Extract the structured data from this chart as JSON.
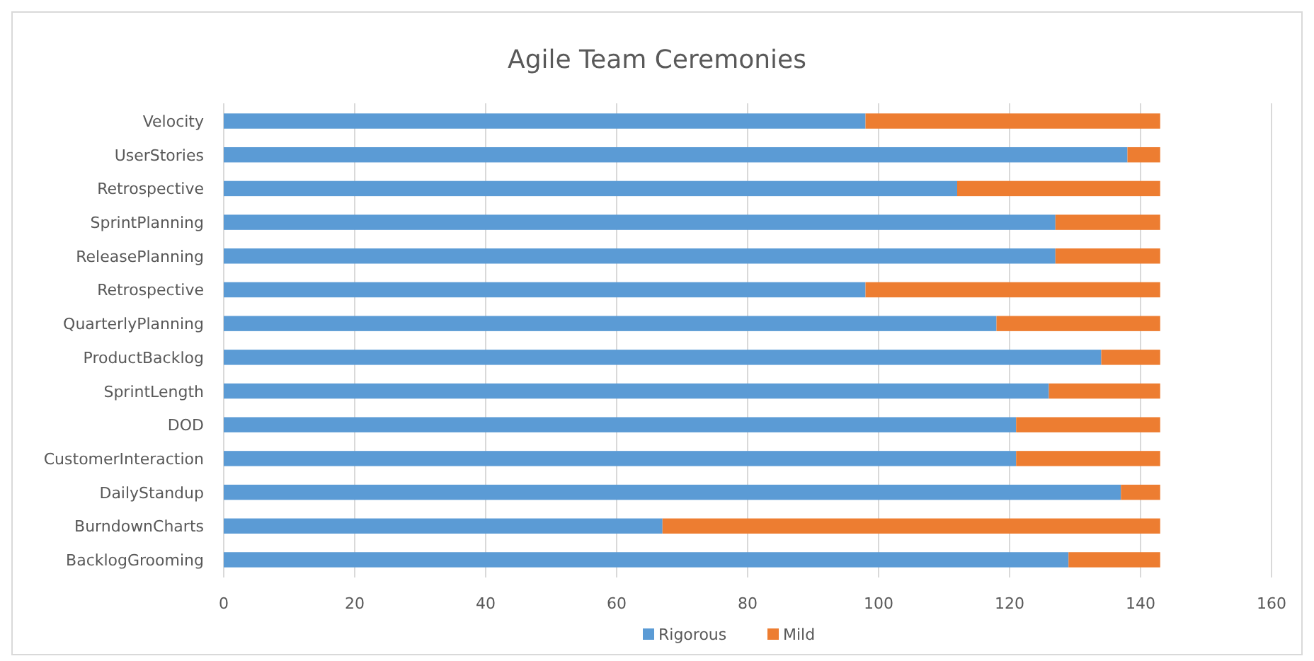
{
  "chart_data": {
    "type": "bar",
    "title": "Agile Team Ceremonies",
    "orientation": "horizontal",
    "stacked": true,
    "categories": [
      "Velocity",
      "UserStories",
      "Retrospective",
      "SprintPlanning",
      "ReleasePlanning",
      "Retrospective",
      "QuarterlyPlanning",
      "ProductBacklog",
      "SprintLength",
      "DOD",
      "CustomerInteraction",
      "DailyStandup",
      "BurndownCharts",
      "BacklogGrooming"
    ],
    "series": [
      {
        "name": "Rigorous",
        "color": "#5b9bd5",
        "values": [
          98,
          138,
          112,
          127,
          127,
          98,
          118,
          134,
          126,
          121,
          121,
          137,
          67,
          129
        ]
      },
      {
        "name": "Mild",
        "color": "#ed7d31",
        "values": [
          45,
          5,
          31,
          16,
          16,
          45,
          25,
          9,
          17,
          22,
          22,
          6,
          76,
          14
        ]
      }
    ],
    "xlim": [
      0,
      160
    ],
    "xticks": [
      0,
      20,
      40,
      60,
      80,
      100,
      120,
      140,
      160
    ],
    "grid": "x",
    "legend": "bottom"
  }
}
